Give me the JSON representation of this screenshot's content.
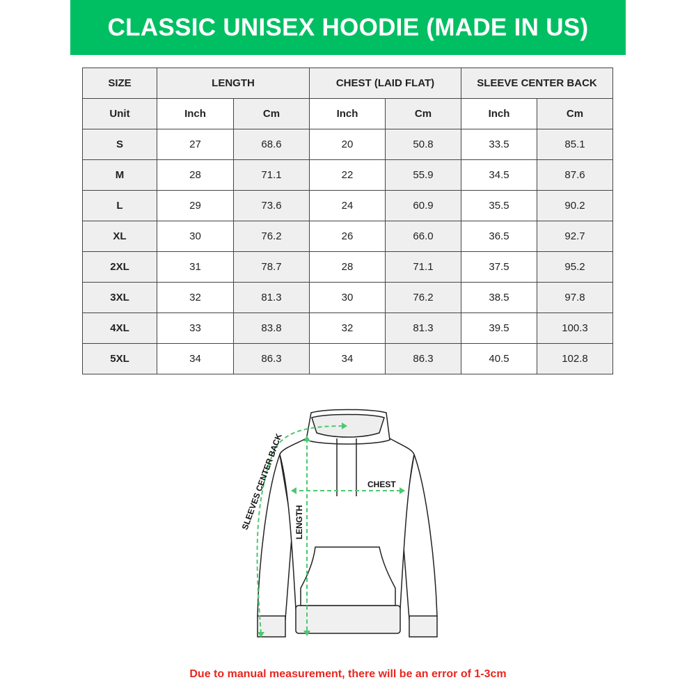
{
  "title": "CLASSIC UNISEX HOODIE (MADE IN US)",
  "colors": {
    "banner": "#00bf63",
    "footer_text": "#e8261f",
    "measure_lines": "#4cc870"
  },
  "table": {
    "headers": [
      "SIZE",
      "LENGTH",
      "CHEST (LAID FLAT)",
      "SLEEVE CENTER BACK"
    ],
    "units": [
      "Unit",
      "Inch",
      "Cm",
      "Inch",
      "Cm",
      "Inch",
      "Cm"
    ],
    "rows": [
      [
        "S",
        "27",
        "68.6",
        "20",
        "50.8",
        "33.5",
        "85.1"
      ],
      [
        "M",
        "28",
        "71.1",
        "22",
        "55.9",
        "34.5",
        "87.6"
      ],
      [
        "L",
        "29",
        "73.6",
        "24",
        "60.9",
        "35.5",
        "90.2"
      ],
      [
        "XL",
        "30",
        "76.2",
        "26",
        "66.0",
        "36.5",
        "92.7"
      ],
      [
        "2XL",
        "31",
        "78.7",
        "28",
        "71.1",
        "37.5",
        "95.2"
      ],
      [
        "3XL",
        "32",
        "81.3",
        "30",
        "76.2",
        "38.5",
        "97.8"
      ],
      [
        "4XL",
        "33",
        "83.8",
        "32",
        "81.3",
        "39.5",
        "100.3"
      ],
      [
        "5XL",
        "34",
        "86.3",
        "34",
        "86.3",
        "40.5",
        "102.8"
      ]
    ]
  },
  "diagram": {
    "chest_label": "CHEST",
    "length_label": "LENGTH",
    "sleeve_label": "SLEEVES CENTER BACK"
  },
  "footer": "Due to manual measurement, there will be an error of 1-3cm"
}
